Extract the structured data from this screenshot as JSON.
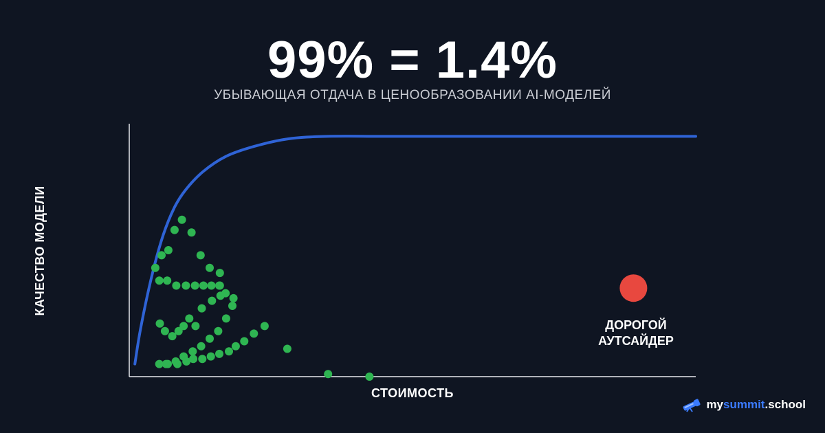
{
  "colors": {
    "background": "#0f1522",
    "curve": "#2f63d6",
    "points": "#2fb552",
    "outlier": "#e8483f",
    "axis": "#e6e8ec"
  },
  "chart_data": {
    "type": "scatter",
    "title": "99% = 1.4%",
    "subtitle": "УБЫВАЮЩАЯ ОТДАЧА В ЦЕНООБРАЗОВАНИИ AI-МОДЕЛЕЙ",
    "xlabel": "СТОИМОСТЬ",
    "ylabel": "КАЧЕСТВО МОДЕЛИ",
    "xlim": [
      0,
      100
    ],
    "ylim": [
      0,
      100
    ],
    "grid": false,
    "curve": {
      "x": [
        1,
        2,
        4,
        6,
        8,
        10,
        13,
        17,
        22,
        28,
        35,
        45,
        60,
        80,
        100
      ],
      "y": [
        5,
        19,
        40,
        56,
        67,
        74,
        81,
        87,
        91,
        94,
        95,
        95,
        95,
        95,
        95
      ]
    },
    "series": [
      {
        "x": [
          5.4,
          6.3,
          7.6,
          8.7,
          9.6,
          11.7,
          10.6,
          12.8,
          14.6,
          16.1,
          16.0,
          16.0,
          14.2,
          12.6,
          11.0,
          9.3,
          8.0,
          6.9,
          5.7,
          4.6,
          5.3,
          6.7,
          8.3,
          10.0,
          11.6,
          13.1,
          14.5,
          15.9,
          17.0,
          18.4,
          18.2,
          17.1,
          15.7,
          14.2,
          12.7,
          11.2,
          9.6,
          8.2,
          6.5,
          5.3,
          6.8,
          8.5,
          10.1,
          11.3,
          12.9,
          14.4,
          15.9,
          17.6,
          18.8,
          20.3,
          22.0,
          23.9,
          27.9,
          35.1,
          42.4
        ],
        "y": [
          21,
          18,
          16,
          18,
          20,
          20,
          23,
          27,
          30,
          32,
          36,
          41,
          43,
          48,
          57,
          62,
          58,
          50,
          48,
          43,
          38,
          38,
          36,
          36,
          36,
          36,
          36,
          36,
          33,
          31,
          28,
          23,
          18,
          15,
          12,
          10,
          8,
          6,
          5,
          5,
          5,
          5,
          6,
          7,
          7,
          8,
          9,
          10,
          12,
          14,
          17,
          20,
          11,
          1,
          0
        ]
      },
      {
        "x": [
          89
        ],
        "y": [
          35
        ],
        "annotation": "ДОРОГОЙ АУТСАЙДЕР"
      }
    ]
  },
  "annotation": {
    "line1": "ДОРОГОЙ",
    "line2": "АУТСАЙДЕР"
  },
  "brand": {
    "prefix": "my",
    "accent": "summit",
    "suffix": ".school"
  }
}
